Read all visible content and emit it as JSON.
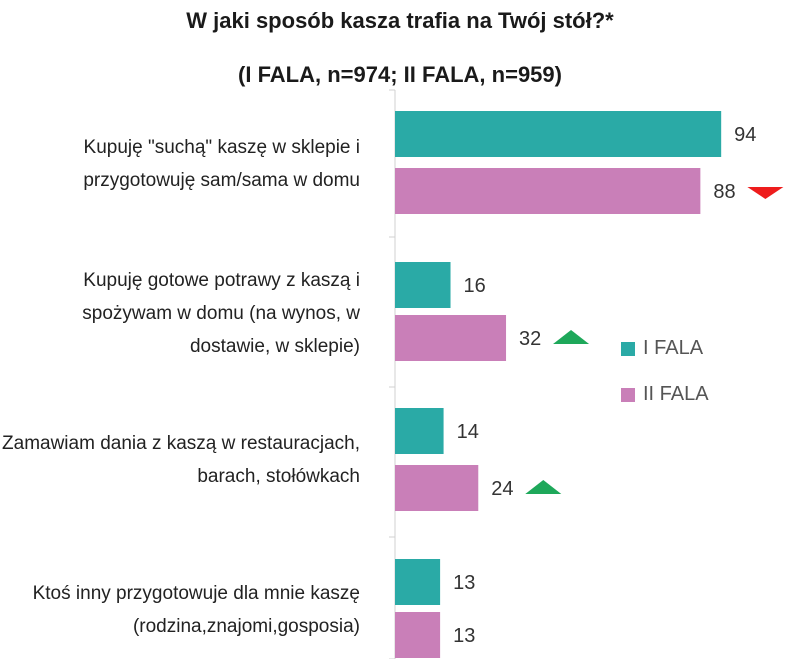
{
  "chart_data": {
    "type": "bar",
    "orientation": "horizontal",
    "title": "W jaki sposób kasza trafia na Twój stół?*",
    "subtitle": "(I FALA, n=974; II FALA, n=959)",
    "categories": [
      "Kupuję \"suchą\" kaszę w sklepie i przygotowuję sam/sama w domu",
      "Kupuję gotowe potrawy z kaszą i spożywam w domu (na wynos, w dostawie, w sklepie)",
      "Zamawiam dania z kaszą w restauracjach, barach, stołówkach",
      "Ktoś inny przygotowuje dla mnie kaszę (rodzina,znajomi,gosposia)"
    ],
    "series": [
      {
        "name": "I FALA",
        "color": "#2aaaa6",
        "values": [
          94,
          16,
          14,
          13
        ]
      },
      {
        "name": "II FALA",
        "color": "#c97fb8",
        "values": [
          88,
          32,
          24,
          13
        ]
      }
    ],
    "change_markers": [
      "down",
      "up",
      "up",
      null
    ],
    "marker_colors": {
      "up": "#1ea85a",
      "down": "#ee1c1c"
    },
    "xlim": [
      0,
      100
    ],
    "legend_position": "right",
    "grid": false
  }
}
